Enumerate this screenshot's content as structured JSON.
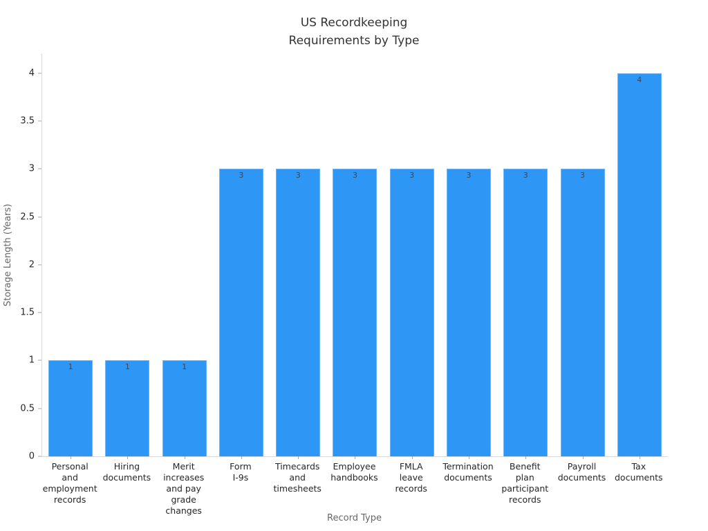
{
  "chart_data": {
    "type": "bar",
    "title": "US Recordkeeping\nRequirements by Type",
    "xlabel": "Record Type",
    "ylabel": "Storage Length (Years)",
    "categories": [
      "Personal\nand\nemployment\nrecords",
      "Hiring\ndocuments",
      "Merit\nincreases\nand pay\ngrade changes",
      "Form\nI-9s",
      "Timecards\nand\ntimesheets",
      "Employee\nhandbooks",
      "FMLA\nleave\nrecords",
      "Termination\ndocuments",
      "Benefit\nplan\nparticipant\nrecords",
      "Payroll\ndocuments",
      "Tax\ndocuments"
    ],
    "values": [
      1,
      1,
      1,
      3,
      3,
      3,
      3,
      3,
      3,
      3,
      4
    ],
    "bar_labels": [
      "1",
      "1",
      "1",
      "3",
      "3",
      "3",
      "3",
      "3",
      "3",
      "3",
      "4"
    ],
    "yticks": [
      0,
      0.5,
      1,
      1.5,
      2,
      2.5,
      3,
      3.5,
      4
    ],
    "ylim": [
      0,
      4.2
    ],
    "grid": false,
    "legend": null
  },
  "colors": {
    "bar": "#2e96f5",
    "title": "#333333",
    "tick_label": "#262626",
    "axis_title": "#666666",
    "spine": "#d9d9d9",
    "tick_mark": "#a6a6a6",
    "bar_value_label": "#3c4654",
    "background": "#ffffff"
  }
}
